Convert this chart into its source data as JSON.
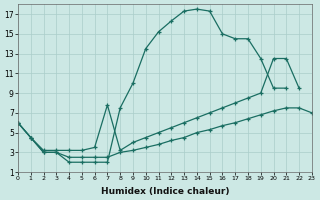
{
  "xlabel": "Humidex (Indice chaleur)",
  "xlim": [
    0,
    23
  ],
  "ylim": [
    1,
    18
  ],
  "xticks": [
    0,
    1,
    2,
    3,
    4,
    5,
    6,
    7,
    8,
    9,
    10,
    11,
    12,
    13,
    14,
    15,
    16,
    17,
    18,
    19,
    20,
    21,
    22,
    23
  ],
  "yticks": [
    1,
    3,
    5,
    7,
    9,
    11,
    13,
    15,
    17
  ],
  "background_color": "#cce8e4",
  "grid_color": "#aaceca",
  "line_color": "#1a6e62",
  "line1_x": [
    0,
    1,
    2,
    3,
    4,
    5,
    6,
    7,
    8,
    9,
    10,
    11,
    12,
    13,
    14,
    15,
    16,
    17,
    18,
    19,
    20,
    21
  ],
  "line1_y": [
    6,
    4.5,
    3,
    3,
    2,
    2,
    2,
    2,
    7.5,
    10,
    13.5,
    15.2,
    16.3,
    17.3,
    17.5,
    17.3,
    15,
    14.5,
    14.5,
    12.5,
    9.5,
    9.5
  ],
  "line2_x": [
    0,
    1,
    2,
    3,
    4,
    5,
    6,
    7,
    8,
    9,
    10,
    11,
    12,
    13,
    14,
    15,
    16,
    17,
    18,
    19,
    20,
    21,
    22
  ],
  "line2_y": [
    6,
    4.5,
    3.2,
    3.2,
    3.2,
    3.2,
    3.5,
    7.8,
    3.2,
    4.0,
    4.5,
    5.0,
    5.5,
    6.0,
    6.5,
    7.0,
    7.5,
    8.0,
    8.5,
    9.0,
    12.5,
    12.5,
    9.5
  ],
  "line3_x": [
    0,
    1,
    2,
    3,
    4,
    5,
    6,
    7,
    8,
    9,
    10,
    11,
    12,
    13,
    14,
    15,
    16,
    17,
    18,
    19,
    20,
    21,
    22,
    23
  ],
  "line3_y": [
    6,
    4.5,
    3,
    3,
    2.5,
    2.5,
    2.5,
    2.5,
    3.0,
    3.2,
    3.5,
    3.8,
    4.2,
    4.5,
    5.0,
    5.3,
    5.7,
    6.0,
    6.4,
    6.8,
    7.2,
    7.5,
    7.5,
    7.0
  ]
}
